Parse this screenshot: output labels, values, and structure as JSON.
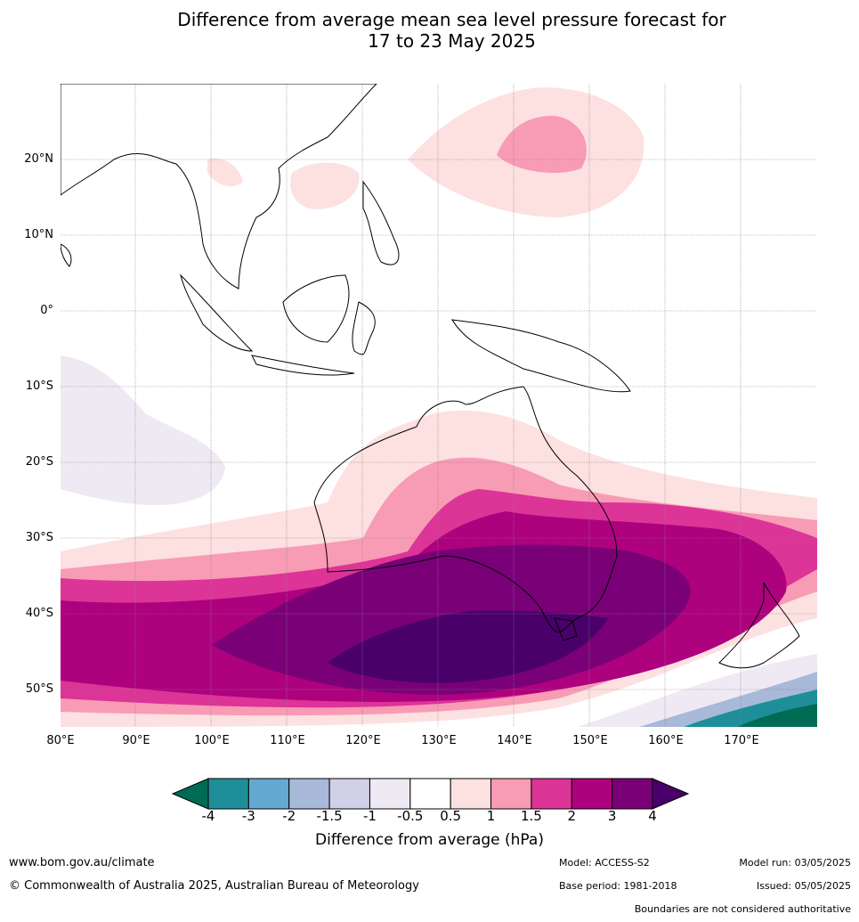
{
  "title_line1": "Difference from average mean sea level pressure forecast for",
  "title_line2": "17 to 23 May 2025",
  "y_axis_labels": [
    "20°N",
    "10°N",
    "0°",
    "10°S",
    "20°S",
    "30°S",
    "40°S",
    "50°S"
  ],
  "x_axis_labels": [
    "80°E",
    "90°E",
    "100°E",
    "110°E",
    "120°E",
    "130°E",
    "140°E",
    "150°E",
    "160°E",
    "170°E"
  ],
  "colorbar": {
    "ticks": [
      "-4",
      "-3",
      "-2",
      "-1.5",
      "-1",
      "-0.5",
      "0.5",
      "1",
      "1.5",
      "2",
      "3",
      "4"
    ],
    "colors": [
      "#006b55",
      "#1e8f98",
      "#64a9d1",
      "#a8b9d9",
      "#d0d0e6",
      "#efe9f3",
      "#ffffff",
      "#fde0e0",
      "#f89bb5",
      "#dc3497",
      "#ad017e",
      "#7a0077",
      "#49006a"
    ],
    "title": "Difference from average (hPa)"
  },
  "footer": {
    "website": "www.bom.gov.au/climate",
    "copyright": "© Commonwealth of Australia 2025, Australian Bureau of Meteorology",
    "model": "Model: ACCESS-S2",
    "base_period": "Base period: 1981-2018",
    "model_run": "Model run: 03/05/2025",
    "issued": "Issued: 05/05/2025",
    "disclaimer": "Boundaries are not considered authoritative"
  }
}
